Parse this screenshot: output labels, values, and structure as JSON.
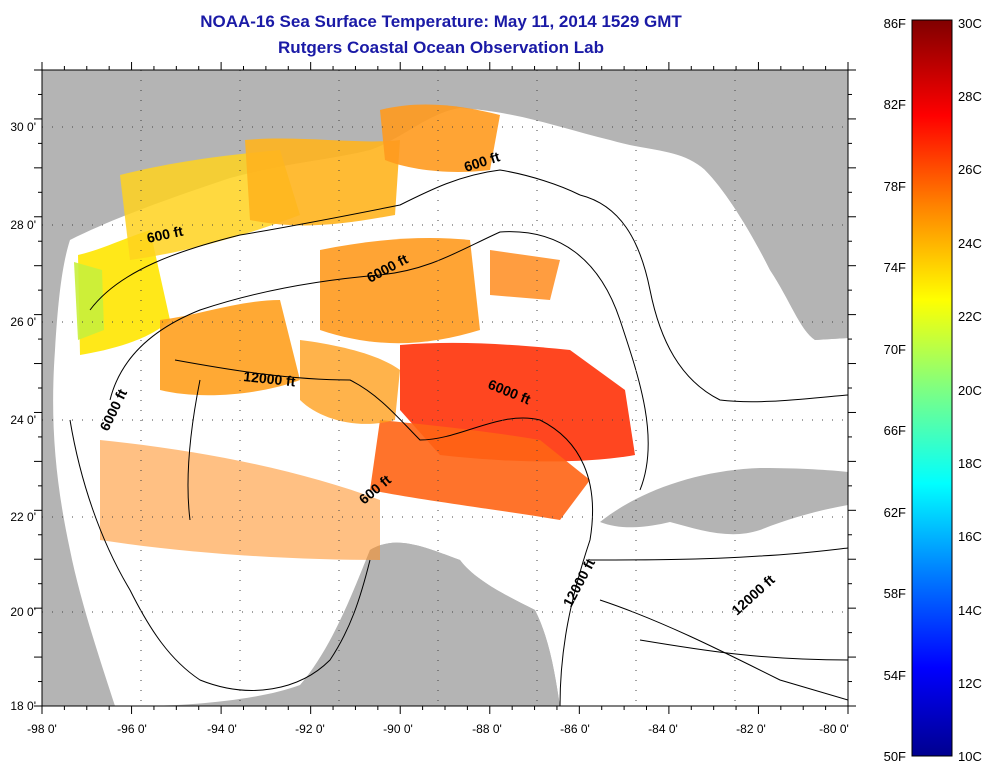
{
  "header": {
    "title": "NOAA-16 Sea Surface Temperature:  May 11, 2014 1529 GMT",
    "subtitle": "Rutgers Coastal Ocean Observation Lab"
  },
  "map": {
    "lon_labels": [
      "-98 0'",
      "-96 0'",
      "-94 0'",
      "-92 0'",
      "-90 0'",
      "-88 0'",
      "-86 0'",
      "-84 0'",
      "-82 0'",
      "-80 0'"
    ],
    "lat_labels": [
      "30 0'",
      "28 0'",
      "26 0'",
      "24 0'",
      "22 0'",
      "20 0'",
      "18 0'"
    ],
    "contour_labels": [
      "600 ft",
      "600 ft",
      "6000 ft",
      "12000 ft",
      "6000 ft",
      "6000 ft",
      "600 ft",
      "12000 ft",
      "12000 ft"
    ],
    "colors": {
      "land": "#b4b4b4",
      "water": "#ffffff",
      "grid": "#000000"
    }
  },
  "colorbar": {
    "fahrenheit_labels": [
      "86F",
      "82F",
      "78F",
      "74F",
      "70F",
      "66F",
      "62F",
      "58F",
      "54F",
      "50F"
    ],
    "celsius_labels": [
      "30C",
      "28C",
      "26C",
      "24C",
      "22C",
      "20C",
      "18C",
      "16C",
      "14C",
      "12C",
      "10C"
    ],
    "colors": [
      "#00008f",
      "#0000ff",
      "#0080ff",
      "#00ffff",
      "#80ff80",
      "#ffff00",
      "#ff8000",
      "#ff0000",
      "#800000"
    ]
  }
}
